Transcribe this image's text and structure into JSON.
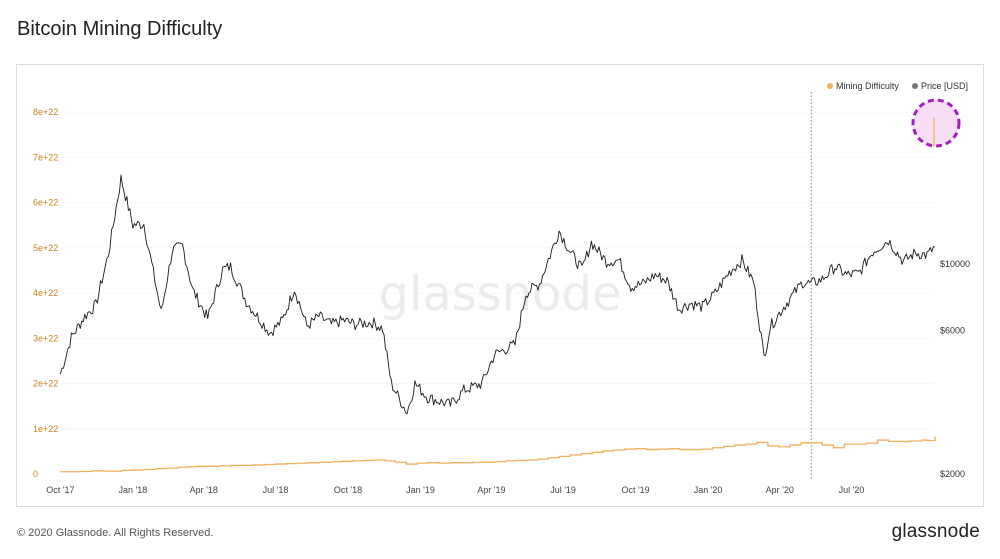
{
  "title": "Bitcoin Mining Difficulty",
  "footer": {
    "copyright": "© 2020 Glassnode. All Rights Reserved.",
    "brand": "glassnode"
  },
  "watermark": "glassnode",
  "colors": {
    "difficulty": "#f2b15f",
    "price": "#1a1a1a",
    "highlight": "#a020c0",
    "highlight_fill": "#f6d8f3"
  },
  "chart_data": {
    "type": "line",
    "title": "Bitcoin Mining Difficulty",
    "x_ticks": [
      "Oct '17",
      "Jan '18",
      "Apr '18",
      "Jul '18",
      "Oct '18",
      "Jan '19",
      "Apr '19",
      "Jul '19",
      "Oct '19",
      "Jan '20",
      "Apr '20",
      "Jul '20"
    ],
    "x_range": [
      "2017-09-28",
      "2020-10-15"
    ],
    "y_left": {
      "ticks": [
        "0",
        "1e+22",
        "2e+22",
        "3e+22",
        "4e+22",
        "5e+22",
        "6e+22",
        "7e+22",
        "8e+22"
      ],
      "range": [
        0,
        8.6e+22
      ]
    },
    "y_right": {
      "ticks": [
        "$2000",
        "$6000",
        "$10000"
      ],
      "scale": "log"
    },
    "legend": {
      "position": "top-right",
      "entries": [
        {
          "name": "Mining Difficulty",
          "color": "#f2b15f"
        },
        {
          "name": "Price [USD]",
          "color": "#777777"
        }
      ]
    },
    "annotations": {
      "vertical_marker": "2020-05-11",
      "highlight": "2020-10-15"
    },
    "series": [
      {
        "name": "Mining Difficulty",
        "axis": "left",
        "step": true,
        "points": [
          [
            "2017-10-01",
            5e+20
          ],
          [
            "2017-10-25",
            5.5e+20
          ],
          [
            "2017-11-10",
            7e+20
          ],
          [
            "2017-11-25",
            6.3e+20
          ],
          [
            "2017-12-06",
            6e+20
          ],
          [
            "2017-12-18",
            8e+20
          ],
          [
            "2018-01-01",
            9e+20
          ],
          [
            "2018-01-15",
            1e+21
          ],
          [
            "2018-01-30",
            1.2e+21
          ],
          [
            "2018-02-13",
            1.3e+21
          ],
          [
            "2018-02-27",
            1.5e+21
          ],
          [
            "2018-03-12",
            1.6e+21
          ],
          [
            "2018-03-25",
            1.7e+21
          ],
          [
            "2018-04-08",
            1.7e+21
          ],
          [
            "2018-04-22",
            1.8e+21
          ],
          [
            "2018-05-06",
            1.9e+21
          ],
          [
            "2018-05-20",
            1.9e+21
          ],
          [
            "2018-06-03",
            2e+21
          ],
          [
            "2018-06-17",
            2.1e+21
          ],
          [
            "2018-07-01",
            2.2e+21
          ],
          [
            "2018-07-15",
            2.3e+21
          ],
          [
            "2018-07-29",
            2.4e+21
          ],
          [
            "2018-08-12",
            2.5e+21
          ],
          [
            "2018-08-26",
            2.6e+21
          ],
          [
            "2018-09-09",
            2.7e+21
          ],
          [
            "2018-09-23",
            2.8e+21
          ],
          [
            "2018-10-07",
            2.9e+21
          ],
          [
            "2018-10-21",
            3e+21
          ],
          [
            "2018-11-04",
            3.1e+21
          ],
          [
            "2018-11-17",
            2.9e+21
          ],
          [
            "2018-11-30",
            2.6e+21
          ],
          [
            "2018-12-14",
            2.2e+21
          ],
          [
            "2018-12-28",
            2.4e+21
          ],
          [
            "2019-01-11",
            2.5e+21
          ],
          [
            "2019-01-25",
            2.4e+21
          ],
          [
            "2019-02-08",
            2.5e+21
          ],
          [
            "2019-02-22",
            2.5e+21
          ],
          [
            "2019-03-08",
            2.6e+21
          ],
          [
            "2019-03-22",
            2.6e+21
          ],
          [
            "2019-04-05",
            2.7e+21
          ],
          [
            "2019-04-19",
            2.9e+21
          ],
          [
            "2019-05-03",
            3e+21
          ],
          [
            "2019-05-16",
            3.1e+21
          ],
          [
            "2019-05-30",
            3.3e+21
          ],
          [
            "2019-06-12",
            3.6e+21
          ],
          [
            "2019-06-26",
            3.9e+21
          ],
          [
            "2019-07-10",
            4.2e+21
          ],
          [
            "2019-07-24",
            4.5e+21
          ],
          [
            "2019-08-07",
            4.8e+21
          ],
          [
            "2019-08-21",
            5.1e+21
          ],
          [
            "2019-09-03",
            5.3e+21
          ],
          [
            "2019-09-17",
            5.5e+21
          ],
          [
            "2019-10-01",
            5.6e+21
          ],
          [
            "2019-10-15",
            5.4e+21
          ],
          [
            "2019-10-29",
            5.5e+21
          ],
          [
            "2019-11-12",
            5.6e+21
          ],
          [
            "2019-11-26",
            5.4e+21
          ],
          [
            "2019-12-10",
            5.4e+21
          ],
          [
            "2019-12-24",
            5.5e+21
          ],
          [
            "2020-01-07",
            5.8e+21
          ],
          [
            "2020-01-21",
            6.1e+21
          ],
          [
            "2020-02-04",
            6.4e+21
          ],
          [
            "2020-02-18",
            6.6e+21
          ],
          [
            "2020-03-03",
            7e+21
          ],
          [
            "2020-03-17",
            6.2e+21
          ],
          [
            "2020-03-31",
            6e+21
          ],
          [
            "2020-04-14",
            6.4e+21
          ],
          [
            "2020-04-28",
            6.9e+21
          ],
          [
            "2020-05-11",
            6.9e+21
          ],
          [
            "2020-05-25",
            6.4e+21
          ],
          [
            "2020-06-08",
            5.8e+21
          ],
          [
            "2020-06-22",
            6.6e+21
          ],
          [
            "2020-07-06",
            6.6e+21
          ],
          [
            "2020-07-20",
            6.8e+21
          ],
          [
            "2020-08-03",
            7.5e+21
          ],
          [
            "2020-08-17",
            7.2e+21
          ],
          [
            "2020-08-31",
            7.2e+21
          ],
          [
            "2020-09-14",
            7.3e+21
          ],
          [
            "2020-09-28",
            7.5e+21
          ],
          [
            "2020-10-06",
            7.4e+21
          ],
          [
            "2020-10-15",
            8.3e+21
          ]
        ]
      },
      {
        "name": "Price [USD]",
        "axis": "right",
        "points": [
          [
            "2017-10-01",
            4300
          ],
          [
            "2017-10-15",
            5700
          ],
          [
            "2017-11-01",
            6700
          ],
          [
            "2017-11-15",
            7300
          ],
          [
            "2017-12-01",
            10800
          ],
          [
            "2017-12-17",
            19300
          ],
          [
            "2018-01-01",
            13500
          ],
          [
            "2018-01-15",
            13600
          ],
          [
            "2018-02-06",
            6900
          ],
          [
            "2018-02-20",
            11100
          ],
          [
            "2018-03-05",
            11500
          ],
          [
            "2018-03-18",
            8200
          ],
          [
            "2018-04-06",
            6600
          ],
          [
            "2018-04-25",
            9600
          ],
          [
            "2018-05-05",
            9800
          ],
          [
            "2018-05-25",
            7500
          ],
          [
            "2018-06-24",
            5900
          ],
          [
            "2018-07-10",
            6500
          ],
          [
            "2018-07-25",
            8300
          ],
          [
            "2018-08-10",
            6200
          ],
          [
            "2018-08-25",
            6700
          ],
          [
            "2018-09-10",
            6300
          ],
          [
            "2018-09-25",
            6500
          ],
          [
            "2018-10-10",
            6300
          ],
          [
            "2018-11-01",
            6400
          ],
          [
            "2018-11-14",
            6100
          ],
          [
            "2018-11-25",
            4000
          ],
          [
            "2018-12-15",
            3200
          ],
          [
            "2018-12-25",
            4000
          ],
          [
            "2019-01-10",
            3600
          ],
          [
            "2019-02-08",
            3400
          ],
          [
            "2019-02-25",
            3800
          ],
          [
            "2019-03-20",
            4000
          ],
          [
            "2019-04-05",
            5000
          ],
          [
            "2019-05-01",
            5400
          ],
          [
            "2019-05-15",
            8000
          ],
          [
            "2019-06-01",
            8600
          ],
          [
            "2019-06-26",
            12900
          ],
          [
            "2019-07-10",
            11000
          ],
          [
            "2019-07-25",
            9600
          ],
          [
            "2019-08-06",
            11800
          ],
          [
            "2019-08-25",
            10200
          ],
          [
            "2019-09-10",
            10300
          ],
          [
            "2019-09-25",
            8400
          ],
          [
            "2019-10-10",
            8600
          ],
          [
            "2019-10-26",
            9200
          ],
          [
            "2019-11-10",
            8800
          ],
          [
            "2019-11-25",
            7100
          ],
          [
            "2019-12-10",
            7400
          ],
          [
            "2019-12-25",
            7200
          ],
          [
            "2020-01-10",
            8000
          ],
          [
            "2020-01-28",
            9400
          ],
          [
            "2020-02-13",
            10300
          ],
          [
            "2020-02-28",
            8700
          ],
          [
            "2020-03-12",
            4900
          ],
          [
            "2020-03-20",
            6200
          ],
          [
            "2020-04-06",
            7200
          ],
          [
            "2020-04-30",
            8700
          ],
          [
            "2020-05-11",
            8600
          ],
          [
            "2020-05-25",
            8900
          ],
          [
            "2020-06-10",
            9800
          ],
          [
            "2020-06-25",
            9200
          ],
          [
            "2020-07-10",
            9300
          ],
          [
            "2020-07-28",
            11000
          ],
          [
            "2020-08-17",
            12000
          ],
          [
            "2020-09-05",
            10200
          ],
          [
            "2020-09-20",
            10900
          ],
          [
            "2020-10-05",
            10700
          ],
          [
            "2020-10-15",
            11400
          ]
        ]
      }
    ]
  }
}
